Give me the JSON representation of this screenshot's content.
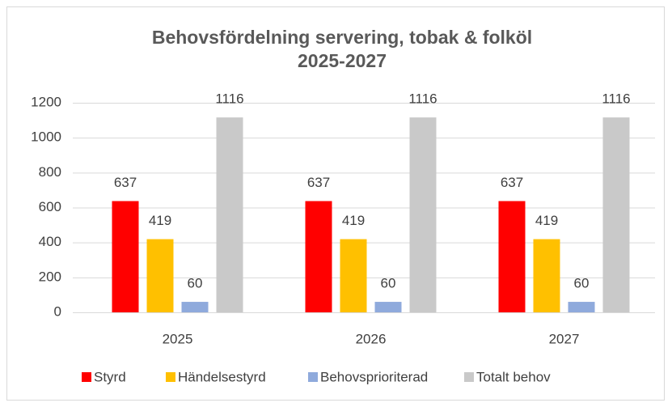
{
  "chart_data": {
    "type": "bar",
    "title": [
      "Behovsfördelning servering, tobak & folköl",
      "2025-2027"
    ],
    "categories": [
      "2025",
      "2026",
      "2027"
    ],
    "series": [
      {
        "name": "Styrd",
        "color": "#ff0000",
        "values": [
          637,
          637,
          637
        ]
      },
      {
        "name": "Händelsestyrd",
        "color": "#ffc000",
        "values": [
          419,
          419,
          419
        ]
      },
      {
        "name": "Behovsprioriterad",
        "color": "#8faadc",
        "values": [
          60,
          60,
          60
        ]
      },
      {
        "name": "Totalt behov",
        "color": "#c9c9c9",
        "values": [
          1116,
          1116,
          1116
        ]
      }
    ],
    "ylim": [
      0,
      1200
    ],
    "yticks": [
      0,
      200,
      400,
      600,
      800,
      1000,
      1200
    ],
    "grid": true,
    "legend": "bottom"
  }
}
